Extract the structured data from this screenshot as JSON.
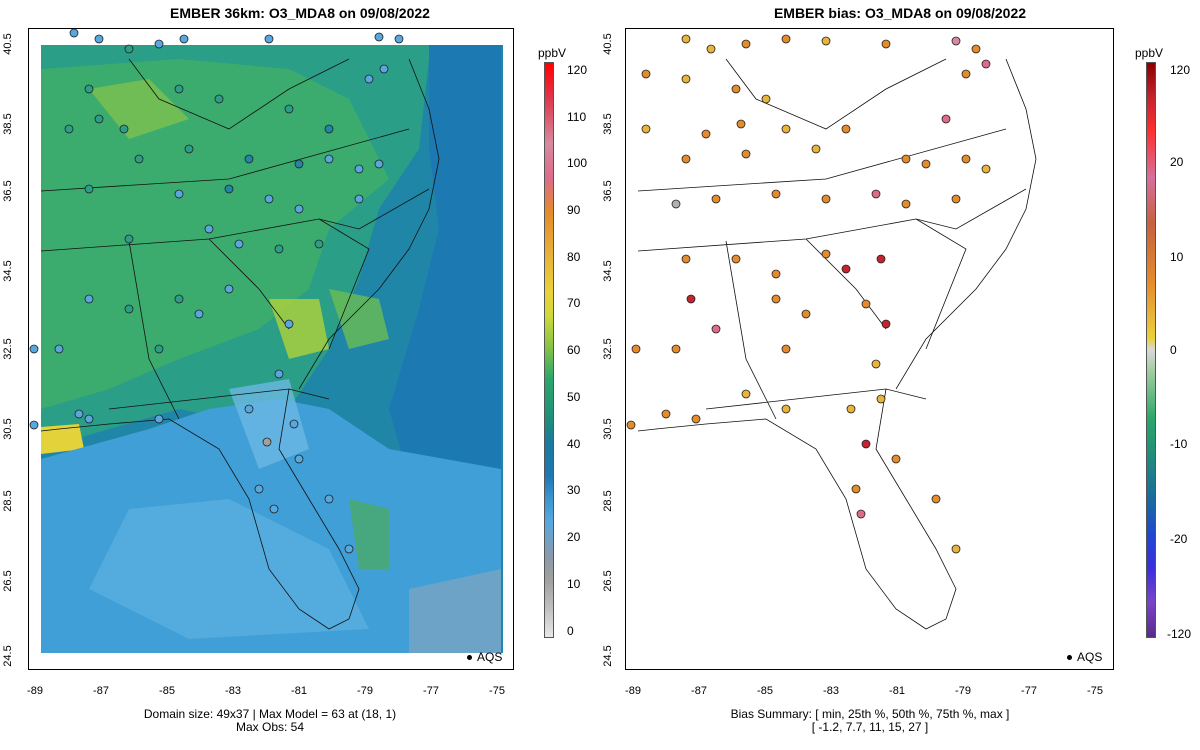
{
  "left": {
    "title": "EMBER 36km: O3_MDA8 on 09/08/2022",
    "colorbar_unit": "ppbV",
    "colorbar_ticks": [
      "120",
      "110",
      "100",
      "90",
      "80",
      "70",
      "60",
      "50",
      "40",
      "30",
      "20",
      "10",
      "0"
    ],
    "footer_line1": "Domain size: 49x37 | Max Model = 63 at (18, 1)",
    "footer_line2": "Max Obs: 54"
  },
  "right": {
    "title": "EMBER bias: O3_MDA8 on 09/08/2022",
    "colorbar_unit": "ppbV",
    "colorbar_ticks": [
      "120",
      "20",
      "10",
      "0",
      "-10",
      "-20",
      "-120"
    ],
    "footer_line1": "Bias Summary: [ min, 25th %, 50th %, 75th %, max ]",
    "footer_line2": "[ -1.2,   7.7,   11,   15,   27 ]"
  },
  "axes": {
    "lat_ticks": [
      "40.5",
      "38.5",
      "36.5",
      "34.5",
      "32.5",
      "30.5",
      "28.5",
      "26.5",
      "24.5"
    ],
    "lon_ticks": [
      "-89",
      "-87",
      "-85",
      "-83",
      "-81",
      "-79",
      "-77",
      "-75"
    ]
  },
  "legend": {
    "label": "AQS"
  },
  "colors": {
    "conc_scale": [
      "#e2e2e2",
      "#c0c0c0",
      "#a0a0a0",
      "#8a9aaa",
      "#7ab4dc",
      "#58a8e0",
      "#3c96d0",
      "#1f78b4",
      "#1a7a9e",
      "#1f8f7a",
      "#2ba76a",
      "#55b84e",
      "#8cc641",
      "#cfd93a",
      "#ead23a",
      "#e8b43a",
      "#e48b2c",
      "#e0682a",
      "#dc6c8a",
      "#d68aa0",
      "#e0354a",
      "#ff0000"
    ],
    "bias_high": "#c4232f",
    "bias_mid": "#e8a030",
    "bias_low": "#b0b0b0"
  }
}
